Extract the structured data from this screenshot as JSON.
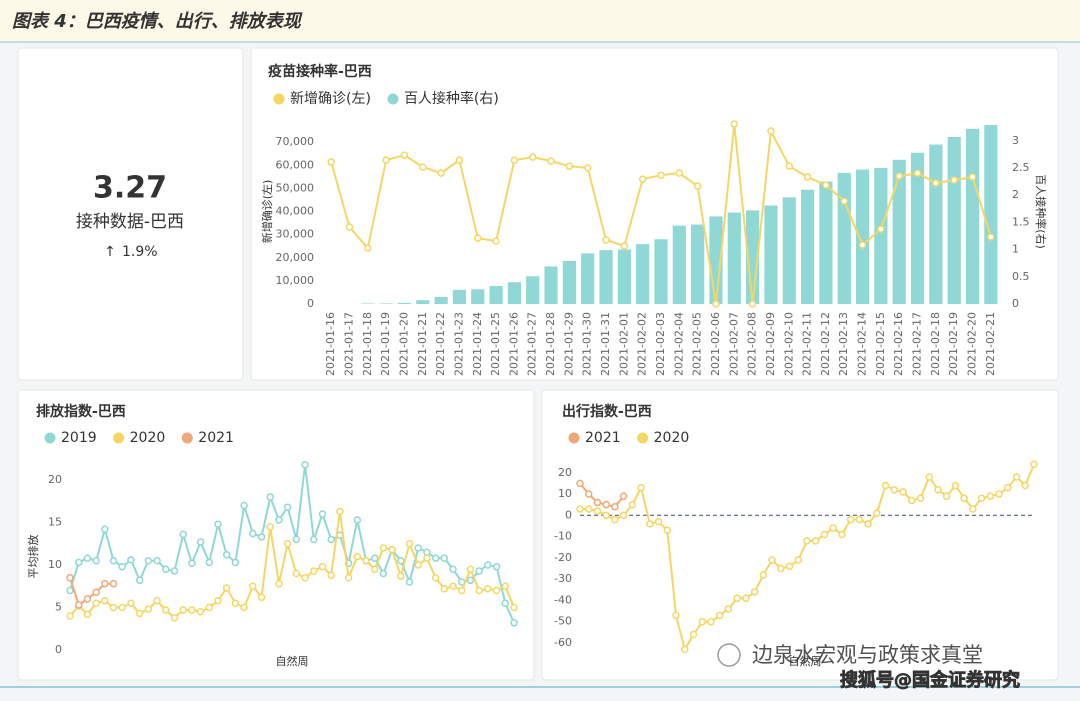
{
  "header": {
    "title": "图表 4：巴西疫情、出行、排放表现"
  },
  "kpi": {
    "value": "3.27",
    "label": "接种数据-巴西",
    "change": "1.9%"
  },
  "chart_data": [
    {
      "type": "combo",
      "title": "疫苗接种率-巴西",
      "ylabel": "新增确诊(左)",
      "y2label": "百人接种率(右)",
      "categories": [
        "2021-01-16",
        "2021-01-17",
        "2021-01-18",
        "2021-01-19",
        "2021-01-20",
        "2021-01-21",
        "2021-01-22",
        "2021-01-23",
        "2021-01-24",
        "2021-01-25",
        "2021-01-26",
        "2021-01-27",
        "2021-01-28",
        "2021-01-29",
        "2021-01-30",
        "2021-01-31",
        "2021-02-01",
        "2021-02-02",
        "2021-02-03",
        "2021-02-04",
        "2021-02-05",
        "2021-02-06",
        "2021-02-07",
        "2021-02-08",
        "2021-02-09",
        "2021-02-10",
        "2021-02-11",
        "2021-02-12",
        "2021-02-13",
        "2021-02-14",
        "2021-02-15",
        "2021-02-16",
        "2021-02-17",
        "2021-02-18",
        "2021-02-19",
        "2021-02-20",
        "2021-02-21"
      ],
      "series": [
        {
          "name": "新增确诊(左)",
          "type": "line",
          "color": "#f5d664",
          "values": [
            61400,
            33300,
            24200,
            62200,
            64400,
            59200,
            56600,
            62200,
            28500,
            27200,
            62200,
            63500,
            61800,
            59600,
            58800,
            27700,
            25100,
            54000,
            55700,
            56600,
            51000,
            0,
            77800,
            0,
            74800,
            59600,
            54900,
            51400,
            44500,
            25500,
            32400,
            55300,
            56600,
            52300,
            53600,
            54900,
            29000
          ]
        },
        {
          "name": "百人接种率(右)",
          "type": "bar",
          "axis": "y2",
          "color": "#8fd8d6",
          "values": [
            0,
            0,
            0.01,
            0.01,
            0.02,
            0.07,
            0.13,
            0.26,
            0.27,
            0.33,
            0.4,
            0.51,
            0.69,
            0.79,
            0.93,
            0.99,
            1.0,
            1.1,
            1.19,
            1.44,
            1.46,
            1.61,
            1.68,
            1.72,
            1.81,
            1.96,
            2.1,
            2.25,
            2.41,
            2.47,
            2.5,
            2.65,
            2.78,
            2.93,
            3.07,
            3.22,
            3.29
          ]
        }
      ],
      "ylim": [
        0,
        80000
      ],
      "yticks": [
        0,
        {
          "value": 10000,
          "label": "10,000"
        },
        {
          "value": 20000,
          "label": "20,000"
        },
        {
          "value": 30000,
          "label": "30,000"
        },
        {
          "value": 40000,
          "label": "40,000"
        },
        {
          "value": 50000,
          "label": "50,000"
        },
        {
          "value": 60000,
          "label": "60,000"
        },
        {
          "value": 70000,
          "label": "70,000"
        }
      ],
      "y2lim": [
        0,
        3.4
      ],
      "y2ticks": [
        0,
        0.5,
        1,
        1.5,
        2,
        2.5,
        3
      ],
      "grid": false
    },
    {
      "type": "line",
      "title": "排放指数-巴西",
      "ylabel": "平均排放",
      "xlabel": "自然周",
      "series": [
        {
          "name": "2019",
          "color": "#8fd8d6",
          "values": [
            7,
            10.3,
            10.8,
            10.5,
            14.2,
            10.5,
            9.8,
            10.6,
            8.2,
            10.5,
            10.5,
            9.5,
            9.3,
            13.6,
            10.2,
            12.7,
            10.3,
            14.8,
            11.2,
            10.3,
            17,
            13.7,
            13.3,
            18,
            15.3,
            16.8,
            13,
            21.8,
            13,
            16,
            13,
            13.5,
            10.2,
            15.3,
            10.5,
            10.8,
            9,
            11.8,
            10.5,
            8,
            12,
            11.5,
            10.8,
            10.8,
            9.5,
            8,
            8.2,
            9.3,
            10,
            9.8,
            5.5,
            3.2
          ]
        },
        {
          "name": "2020",
          "color": "#f5d664",
          "values": [
            4,
            5.2,
            4.2,
            5.5,
            5.8,
            5,
            5,
            5.5,
            4.3,
            4.8,
            5.8,
            4.7,
            3.8,
            4.7,
            4.7,
            4.5,
            5,
            5.8,
            7.3,
            5.5,
            5,
            7.5,
            6.2,
            14.5,
            7.8,
            12.5,
            9,
            8.5,
            9.3,
            9.8,
            8.8,
            16.3,
            8.5,
            11,
            10.5,
            9.5,
            12,
            11.8,
            8.7,
            12.5,
            10,
            10.8,
            8.5,
            7.2,
            7.5,
            7,
            9.5,
            7,
            7.2,
            7,
            7.5,
            5
          ]
        },
        {
          "name": "2021",
          "color": "#f0a878",
          "values": [
            8.5,
            5.3,
            6,
            6.8,
            7.8,
            7.8
          ]
        }
      ],
      "ylim": [
        0,
        22
      ],
      "yticks": [
        0,
        5,
        10,
        15,
        20
      ],
      "grid": false
    },
    {
      "type": "line",
      "title": "出行指数-巴西",
      "xlabel": "自然周",
      "hline": 0,
      "series": [
        {
          "name": "2021",
          "color": "#f0a878",
          "values": [
            15,
            10,
            6,
            5,
            4,
            9
          ]
        },
        {
          "name": "2020",
          "color": "#f5d664",
          "values": [
            3,
            3,
            2,
            0,
            -2,
            0,
            5,
            13,
            -4,
            -3,
            -7,
            -47,
            -63,
            -56,
            -50,
            -50,
            -47,
            -44,
            -39,
            -39,
            -36,
            -28,
            -21,
            -25,
            -24,
            -21,
            -12,
            -12,
            -9,
            -6,
            -9,
            -2,
            -2,
            -4,
            1,
            14,
            12,
            11,
            7,
            8,
            18,
            12,
            9,
            14,
            8,
            3,
            8,
            9,
            10,
            13,
            18,
            14,
            24
          ]
        }
      ],
      "ylim": [
        -64,
        26
      ],
      "yticks": [
        -60,
        -50,
        -40,
        -30,
        -20,
        -10,
        0,
        10,
        20
      ],
      "grid": false
    }
  ],
  "watermark": {
    "account": "边泉水宏观与政策求真堂",
    "source": "搜狐号@国金证券研究"
  }
}
